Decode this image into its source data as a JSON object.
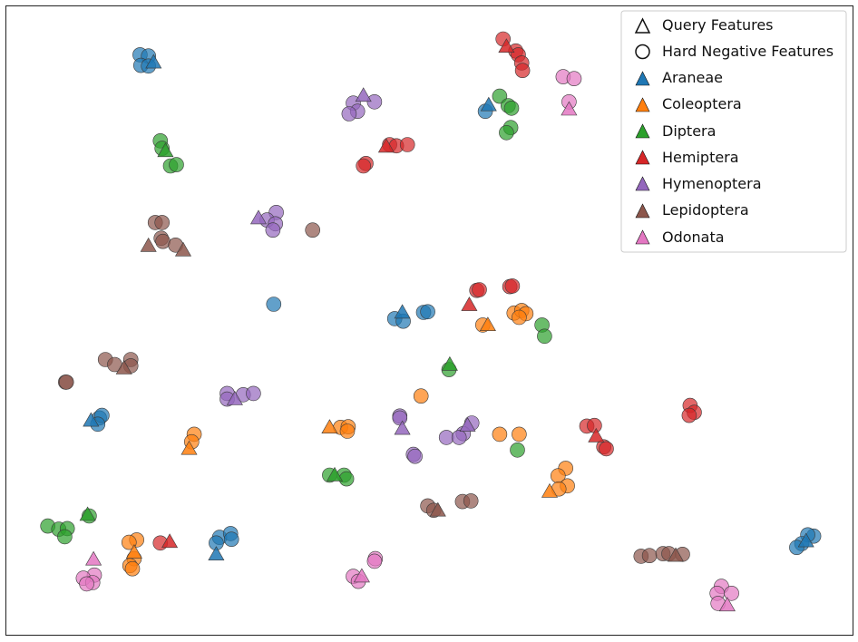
{
  "chart_data": {
    "type": "scatter",
    "title": "",
    "xlabel": "",
    "ylabel": "",
    "xlim": [
      0,
      100
    ],
    "ylim": [
      0,
      100
    ],
    "axes_visible": false,
    "grid": false,
    "legend_position": "top-right",
    "legend": {
      "markers": [
        {
          "label": "Query Features",
          "shape": "triangle"
        },
        {
          "label": "Hard Negative Features",
          "shape": "circle"
        }
      ],
      "classes": [
        {
          "label": "Araneae",
          "color": "#1f77b4"
        },
        {
          "label": "Coleoptera",
          "color": "#ff7f0e"
        },
        {
          "label": "Diptera",
          "color": "#2ca02c"
        },
        {
          "label": "Hemiptera",
          "color": "#d62728"
        },
        {
          "label": "Hymenoptera",
          "color": "#9467bd"
        },
        {
          "label": "Lepidoptera",
          "color": "#8c564b"
        },
        {
          "label": "Odonata",
          "color": "#e377c2"
        }
      ]
    },
    "series": [
      {
        "name": "Araneae",
        "color": "#1f77b4",
        "query": [
          [
            17.4,
            91.1
          ],
          [
            57.0,
            84.3
          ],
          [
            46.8,
            51.3
          ],
          [
            10.0,
            34.1
          ],
          [
            24.8,
            12.8
          ],
          [
            94.5,
            14.9
          ]
        ],
        "hard_negative": [
          [
            15.8,
            92.3
          ],
          [
            16.8,
            92.1
          ],
          [
            15.9,
            90.6
          ],
          [
            16.8,
            90.5
          ],
          [
            56.6,
            83.3
          ],
          [
            31.6,
            52.6
          ],
          [
            45.9,
            50.3
          ],
          [
            46.9,
            49.9
          ],
          [
            49.3,
            51.3
          ],
          [
            49.8,
            51.4
          ],
          [
            11.0,
            34.5
          ],
          [
            11.3,
            34.9
          ],
          [
            10.8,
            33.5
          ],
          [
            25.2,
            15.5
          ],
          [
            26.5,
            16.1
          ],
          [
            26.6,
            15.2
          ],
          [
            24.8,
            14.6
          ],
          [
            95.4,
            15.7
          ],
          [
            94.7,
            15.9
          ],
          [
            94.0,
            14.5
          ],
          [
            93.4,
            13.9
          ]
        ]
      },
      {
        "name": "Coleoptera",
        "color": "#ff7f0e",
        "query": [
          [
            56.9,
            49.3
          ],
          [
            38.2,
            33.0
          ],
          [
            21.6,
            29.6
          ],
          [
            64.2,
            22.8
          ],
          [
            15.1,
            13.1
          ]
        ],
        "hard_negative": [
          [
            60.0,
            51.2
          ],
          [
            60.9,
            51.6
          ],
          [
            61.4,
            51.1
          ],
          [
            60.6,
            50.5
          ],
          [
            56.3,
            49.3
          ],
          [
            49.0,
            38.0
          ],
          [
            39.5,
            33.0
          ],
          [
            40.4,
            33.1
          ],
          [
            40.3,
            32.4
          ],
          [
            22.2,
            31.9
          ],
          [
            21.9,
            30.7
          ],
          [
            58.3,
            31.9
          ],
          [
            60.6,
            31.9
          ],
          [
            66.1,
            26.5
          ],
          [
            65.2,
            25.3
          ],
          [
            66.3,
            23.7
          ],
          [
            65.3,
            23.2
          ],
          [
            15.4,
            15.1
          ],
          [
            14.5,
            14.7
          ],
          [
            15.1,
            12.1
          ],
          [
            14.6,
            11.0
          ],
          [
            14.9,
            10.5
          ]
        ]
      },
      {
        "name": "Diptera",
        "color": "#2ca02c",
        "query": [
          [
            18.8,
            77.0
          ],
          [
            52.4,
            43.0
          ],
          [
            38.8,
            25.4
          ],
          [
            9.6,
            19.1
          ]
        ],
        "hard_negative": [
          [
            58.3,
            85.7
          ],
          [
            59.3,
            84.2
          ],
          [
            59.7,
            83.8
          ],
          [
            59.6,
            80.7
          ],
          [
            59.1,
            79.9
          ],
          [
            18.2,
            78.6
          ],
          [
            18.4,
            77.4
          ],
          [
            19.4,
            74.6
          ],
          [
            20.1,
            74.8
          ],
          [
            63.3,
            49.3
          ],
          [
            63.6,
            47.5
          ],
          [
            52.3,
            42.2
          ],
          [
            60.4,
            29.4
          ],
          [
            38.2,
            25.4
          ],
          [
            39.9,
            25.4
          ],
          [
            40.2,
            24.8
          ],
          [
            4.9,
            17.3
          ],
          [
            6.2,
            16.8
          ],
          [
            7.2,
            16.9
          ],
          [
            6.9,
            15.6
          ],
          [
            9.8,
            18.9
          ]
        ]
      },
      {
        "name": "Hemiptera",
        "color": "#d62728",
        "query": [
          [
            59.1,
            93.6
          ],
          [
            44.9,
            77.7
          ],
          [
            54.7,
            52.5
          ],
          [
            69.7,
            31.6
          ],
          [
            19.3,
            14.8
          ]
        ],
        "hard_negative": [
          [
            58.7,
            94.8
          ],
          [
            60.2,
            92.9
          ],
          [
            60.5,
            92.3
          ],
          [
            60.9,
            91.0
          ],
          [
            61.0,
            89.8
          ],
          [
            45.3,
            78.0
          ],
          [
            46.1,
            77.8
          ],
          [
            47.4,
            78.0
          ],
          [
            42.5,
            75.0
          ],
          [
            42.2,
            74.6
          ],
          [
            55.6,
            54.8
          ],
          [
            55.9,
            54.9
          ],
          [
            59.5,
            55.4
          ],
          [
            59.8,
            55.5
          ],
          [
            80.8,
            36.5
          ],
          [
            81.3,
            35.4
          ],
          [
            80.7,
            34.9
          ],
          [
            68.6,
            33.2
          ],
          [
            69.5,
            33.3
          ],
          [
            70.6,
            29.9
          ],
          [
            70.9,
            29.6
          ],
          [
            18.2,
            14.6
          ]
        ]
      },
      {
        "name": "Hymenoptera",
        "color": "#9467bd",
        "query": [
          [
            42.2,
            85.8
          ],
          [
            29.8,
            66.3
          ],
          [
            27.0,
            37.5
          ],
          [
            46.8,
            32.8
          ],
          [
            54.5,
            33.3
          ]
        ],
        "hard_negative": [
          [
            41.0,
            84.6
          ],
          [
            43.5,
            84.8
          ],
          [
            41.5,
            83.3
          ],
          [
            40.5,
            82.9
          ],
          [
            31.9,
            67.2
          ],
          [
            30.8,
            66.0
          ],
          [
            31.8,
            65.4
          ],
          [
            31.5,
            64.4
          ],
          [
            26.1,
            38.4
          ],
          [
            26.1,
            37.5
          ],
          [
            28.0,
            38.2
          ],
          [
            29.2,
            38.4
          ],
          [
            46.5,
            34.8
          ],
          [
            46.5,
            34.5
          ],
          [
            55.0,
            33.7
          ],
          [
            54.0,
            32.0
          ],
          [
            52.0,
            31.4
          ],
          [
            53.5,
            31.4
          ],
          [
            48.1,
            28.7
          ],
          [
            48.3,
            28.4
          ]
        ]
      },
      {
        "name": "Lepidoptera",
        "color": "#8c564b",
        "query": [
          [
            16.8,
            61.9
          ],
          [
            20.9,
            61.2
          ],
          [
            13.9,
            42.4
          ],
          [
            51.0,
            19.8
          ],
          [
            79.1,
            12.6
          ]
        ],
        "hard_negative": [
          [
            17.6,
            65.6
          ],
          [
            18.4,
            65.6
          ],
          [
            18.3,
            63.1
          ],
          [
            18.5,
            62.6
          ],
          [
            20.0,
            62.0
          ],
          [
            36.2,
            64.4
          ],
          [
            11.7,
            43.8
          ],
          [
            12.8,
            43.0
          ],
          [
            14.7,
            43.8
          ],
          [
            14.7,
            42.8
          ],
          [
            7.0,
            40.2
          ],
          [
            7.1,
            40.2
          ],
          [
            49.8,
            20.5
          ],
          [
            50.5,
            19.8
          ],
          [
            53.9,
            21.2
          ],
          [
            54.9,
            21.3
          ],
          [
            75.0,
            12.5
          ],
          [
            76.0,
            12.6
          ],
          [
            77.6,
            12.9
          ],
          [
            78.3,
            12.9
          ],
          [
            79.9,
            12.8
          ]
        ]
      },
      {
        "name": "Odonata",
        "color": "#e377c2",
        "query": [
          [
            66.5,
            83.6
          ],
          [
            10.3,
            12.0
          ],
          [
            42.0,
            9.3
          ],
          [
            85.2,
            4.7
          ]
        ],
        "hard_negative": [
          [
            65.8,
            88.8
          ],
          [
            67.1,
            88.5
          ],
          [
            66.5,
            84.8
          ],
          [
            10.4,
            9.5
          ],
          [
            9.1,
            9.0
          ],
          [
            10.2,
            8.3
          ],
          [
            9.5,
            8.1
          ],
          [
            43.6,
            12.1
          ],
          [
            43.5,
            11.7
          ],
          [
            41.0,
            9.3
          ],
          [
            41.6,
            8.5
          ],
          [
            84.5,
            7.7
          ],
          [
            85.7,
            6.6
          ],
          [
            84.0,
            6.6
          ],
          [
            84.1,
            5.0
          ]
        ]
      }
    ]
  }
}
